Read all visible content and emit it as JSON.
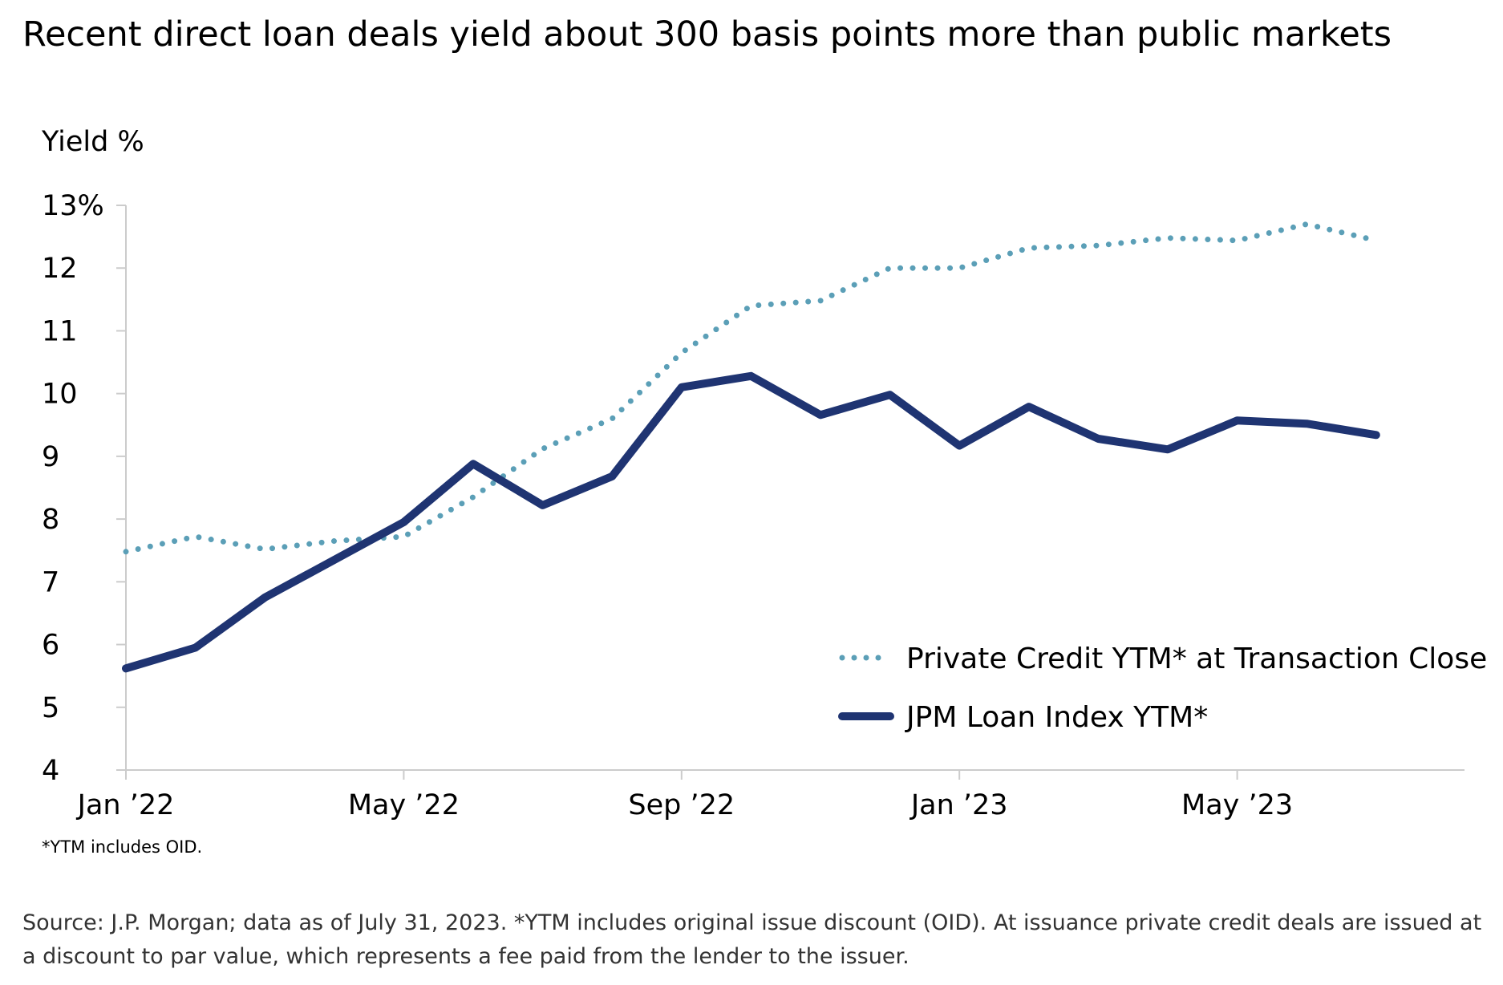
{
  "title": "Recent direct loan deals yield about 300 basis points more than public markets",
  "footnote": "*YTM includes OID.",
  "source": "Source: J.P. Morgan; data as of July 31, 2023. *YTM includes original issue discount (OID).  At issuance private credit deals are issued at a discount to par value, which represents a fee paid from the lender to the issuer.",
  "colors": {
    "private_credit": "#5b9fb7",
    "jpm_loan": "#1f3472",
    "axis": "#cccccc"
  },
  "chart_data": {
    "type": "line",
    "title": "Recent direct loan deals yield about 300 basis points more than public markets",
    "ylabel": "Yield %",
    "xlabel": "",
    "ylim": [
      4,
      13
    ],
    "y_ticks": [
      "4",
      "5",
      "6",
      "7",
      "8",
      "9",
      "10",
      "11",
      "12",
      "13%"
    ],
    "y_tick_values": [
      4,
      5,
      6,
      7,
      8,
      9,
      10,
      11,
      12,
      13
    ],
    "x": [
      "Jan '22",
      "Feb '22",
      "Mar '22",
      "Apr '22",
      "May '22",
      "Jun '22",
      "Jul '22",
      "Aug '22",
      "Sep '22",
      "Oct '22",
      "Nov '22",
      "Dec '22",
      "Jan '23",
      "Feb '23",
      "Mar '23",
      "Apr '23",
      "May '23",
      "Jun '23",
      "Jul '23"
    ],
    "x_ticks": [
      "Jan ’22",
      "May ’22",
      "Sep ’22",
      "Jan ’23",
      "May ’23"
    ],
    "x_tick_index": [
      0,
      4,
      8,
      12,
      16
    ],
    "legend_position": "bottom-right",
    "grid": false,
    "series": [
      {
        "name": "Private Credit YTM* at Transaction Close",
        "style": "dotted",
        "values": [
          7.48,
          7.72,
          7.52,
          7.65,
          7.72,
          8.35,
          9.12,
          9.6,
          10.65,
          11.4,
          11.48,
          12.0,
          12.0,
          12.32,
          12.36,
          12.48,
          12.44,
          12.7,
          12.44
        ]
      },
      {
        "name": "JPM Loan Index YTM*",
        "style": "solid",
        "values": [
          5.62,
          5.95,
          6.75,
          7.35,
          7.95,
          8.88,
          8.22,
          8.68,
          10.1,
          10.28,
          9.66,
          9.98,
          9.17,
          9.79,
          9.28,
          9.11,
          9.57,
          9.52,
          9.34
        ]
      }
    ]
  }
}
